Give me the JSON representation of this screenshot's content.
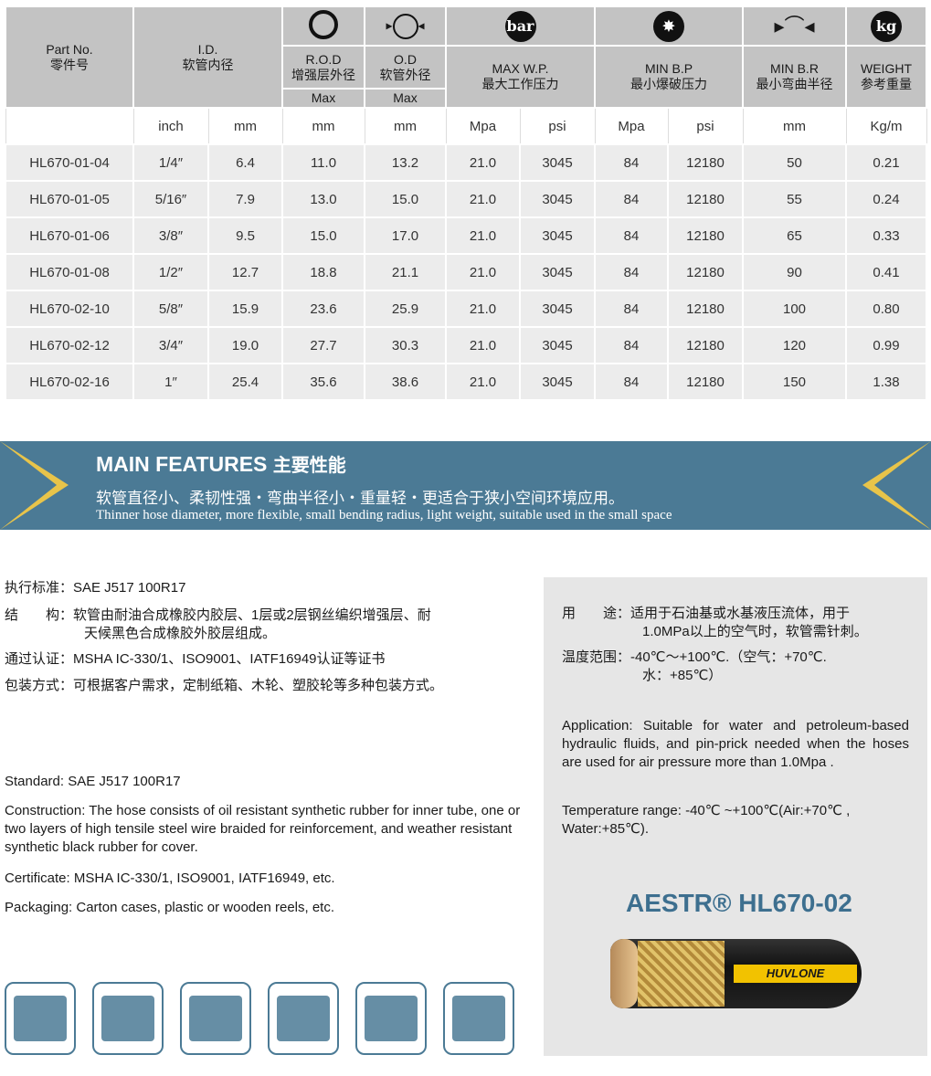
{
  "table": {
    "header": {
      "part_no": "Part No.",
      "part_no_cn": "零件号",
      "id": "I.D.",
      "id_cn": "软管内径",
      "rod": "R.O.D",
      "rod_cn": "增强层外径",
      "od": "O.D",
      "od_cn": "软管外径",
      "max": "Max",
      "wp": "MAX W.P.",
      "wp_cn": "最大工作压力",
      "bp": "MIN B.P",
      "bp_cn": "最小爆破压力",
      "br": "MIN B.R",
      "br_cn": "最小弯曲半径",
      "weight": "WEIGHT",
      "weight_cn": "参考重量",
      "bar_icon": "bar",
      "kg_icon": "kg"
    },
    "units": [
      "",
      "inch",
      "mm",
      "mm",
      "mm",
      "Mpa",
      "psi",
      "Mpa",
      "psi",
      "mm",
      "Kg/m"
    ],
    "rows": [
      [
        "HL670-01-04",
        "1/4″",
        "6.4",
        "11.0",
        "13.2",
        "21.0",
        "3045",
        "84",
        "12180",
        "50",
        "0.21"
      ],
      [
        "HL670-01-05",
        "5/16″",
        "7.9",
        "13.0",
        "15.0",
        "21.0",
        "3045",
        "84",
        "12180",
        "55",
        "0.24"
      ],
      [
        "HL670-01-06",
        "3/8″",
        "9.5",
        "15.0",
        "17.0",
        "21.0",
        "3045",
        "84",
        "12180",
        "65",
        "0.33"
      ],
      [
        "HL670-01-08",
        "1/2″",
        "12.7",
        "18.8",
        "21.1",
        "21.0",
        "3045",
        "84",
        "12180",
        "90",
        "0.41"
      ],
      [
        "HL670-02-10",
        "5/8″",
        "15.9",
        "23.6",
        "25.9",
        "21.0",
        "3045",
        "84",
        "12180",
        "100",
        "0.80"
      ],
      [
        "HL670-02-12",
        "3/4″",
        "19.0",
        "27.7",
        "30.3",
        "21.0",
        "3045",
        "84",
        "12180",
        "120",
        "0.99"
      ],
      [
        "HL670-02-16",
        "1″",
        "25.4",
        "35.6",
        "38.6",
        "21.0",
        "3045",
        "84",
        "12180",
        "150",
        "1.38"
      ]
    ]
  },
  "banner": {
    "title": "MAIN FEATURES",
    "title_cn": "主要性能",
    "line_cn": "软管直径小、柔韧性强・弯曲半径小・重量轻・更适合于狭小空间环境应用。",
    "line_en": "Thinner hose diameter, more flexible, small bending radius, light weight, suitable used in the small space"
  },
  "left": {
    "cn": [
      "执行标准：SAE J517 100R17",
      "结　　构：软管由耐油合成橡胶内胶层、1层或2层钢丝编织增强层、耐",
      "天候黑色合成橡胶外胶层组成。",
      "通过认证：MSHA IC-330/1、ISO9001、IATF16949认证等证书",
      "包装方式：可根据客户需求，定制纸箱、木轮、塑胶轮等多种包装方式。"
    ],
    "en": [
      "Standard: SAE J517 100R17",
      "Construction: The hose consists of oil resistant synthetic rubber for inner tube, one or two layers of high tensile steel wire braided for reinforcement, and weather resistant synthetic black rubber for cover.",
      "Certificate: MSHA IC-330/1, ISO9001, IATF16949, etc.",
      "Packaging: Carton cases, plastic or wooden reels, etc."
    ]
  },
  "right": {
    "cn": [
      "用　　途：适用于石油基或水基液压流体，用于",
      "1.0MPa以上的空气时，软管需针刺。",
      "温度范围：-40℃～+100℃.（空气：+70℃.",
      "水：+85℃）"
    ],
    "en": [
      "Application: Suitable for water and petroleum-based hydraulic fluids, and pin-prick needed when the hoses are used for air pressure more than 1.0Mpa .",
      "Temperature range: -40℃ ~+100℃(Air:+70℃ , Water:+85℃)."
    ],
    "product": "AESTR® HL670-02",
    "hose_brand": "HUVLONE"
  },
  "colors": {
    "header_gray": "#c3c3c3",
    "row_gray": "#ececec",
    "banner_blue": "#4b7a95",
    "accent_yellow": "#e8c44a",
    "product_blue": "#3d6f8f"
  },
  "applications": [
    "excavator-icon",
    "loader-icon",
    "mining-truck-icon",
    "ship-crane-icon",
    "building-icon",
    "agriculture-tractor-icon"
  ]
}
